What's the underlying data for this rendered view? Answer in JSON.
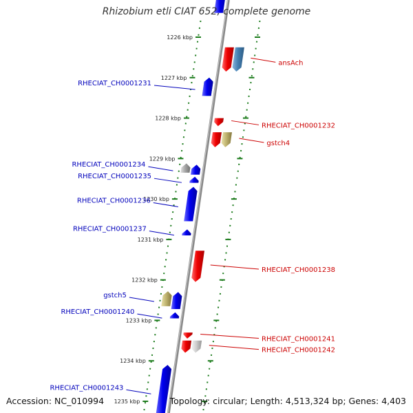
{
  "header": {
    "title": "Rhizobium etli CIAT 652, complete genome"
  },
  "footer": {
    "accession": "Accession: NC_010994",
    "topology": "Topology: circular; Length: 4,513,324 bp; Genes: 4,403"
  },
  "colors": {
    "forward_gene": "#ff0000",
    "reverse_gene": "#0000ff",
    "forward_label": "#cc0000",
    "reverse_label": "#0000bb",
    "tick": "#1a7a1a",
    "backbone": "#888888"
  },
  "ticks": [
    {
      "kbp": 1226,
      "label": "1226 kbp"
    },
    {
      "kbp": 1227,
      "label": "1227 kbp"
    },
    {
      "kbp": 1228,
      "label": "1228 kbp"
    },
    {
      "kbp": 1229,
      "label": "1229 kbp"
    },
    {
      "kbp": 1230,
      "label": "1230 kbp"
    },
    {
      "kbp": 1231,
      "label": "1231 kbp"
    },
    {
      "kbp": 1232,
      "label": "1232 kbp"
    },
    {
      "kbp": 1233,
      "label": "1233 kbp"
    },
    {
      "kbp": 1234,
      "label": "1234 kbp"
    },
    {
      "kbp": 1235,
      "label": "1235 kbp"
    }
  ],
  "genes": [
    {
      "start": 1224.7,
      "end": 1225.4,
      "strand": "-",
      "color": "blue"
    },
    {
      "start": 1226.25,
      "end": 1226.85,
      "strand": "+",
      "color": "red"
    },
    {
      "start": 1226.25,
      "end": 1226.85,
      "strand": "+",
      "color": "steelblue",
      "label": "ansAch"
    },
    {
      "start": 1227.0,
      "end": 1227.45,
      "strand": "-",
      "color": "orange"
    },
    {
      "start": 1227.0,
      "end": 1227.45,
      "strand": "-",
      "color": "cyan",
      "label": "RHECIAT_CH0001231"
    },
    {
      "start": 1227.0,
      "end": 1227.45,
      "strand": "-",
      "color": "blue"
    },
    {
      "start": 1228.0,
      "end": 1228.2,
      "strand": "+",
      "color": "red",
      "label": "RHECIAT_CH0001232"
    },
    {
      "start": 1228.35,
      "end": 1228.72,
      "strand": "+",
      "color": "red"
    },
    {
      "start": 1228.35,
      "end": 1228.72,
      "strand": "+",
      "color": "khaki",
      "label": "gstch4"
    },
    {
      "start": 1229.12,
      "end": 1229.35,
      "strand": "-",
      "color": "grey",
      "label": "RHECIAT_CH0001234"
    },
    {
      "start": 1229.15,
      "end": 1229.4,
      "strand": "-",
      "color": "blue"
    },
    {
      "start": 1229.45,
      "end": 1229.6,
      "strand": "-",
      "color": "blue",
      "label": "RHECIAT_CH0001235"
    },
    {
      "start": 1229.7,
      "end": 1230.55,
      "strand": "-",
      "color": "blue",
      "label": "RHECIAT_CH0001236"
    },
    {
      "start": 1230.75,
      "end": 1230.9,
      "strand": "-",
      "color": "blue",
      "label": "RHECIAT_CH0001237"
    },
    {
      "start": 1231.28,
      "end": 1232.05,
      "strand": "+",
      "color": "red",
      "label": "RHECIAT_CH0001238"
    },
    {
      "start": 1232.28,
      "end": 1232.65,
      "strand": "-",
      "color": "khaki",
      "label": "gstch5"
    },
    {
      "start": 1232.3,
      "end": 1232.72,
      "strand": "-",
      "color": "blue"
    },
    {
      "start": 1232.8,
      "end": 1232.95,
      "strand": "-",
      "color": "blue",
      "label": "RHECIAT_CH0001240"
    },
    {
      "start": 1233.3,
      "end": 1233.45,
      "strand": "+",
      "color": "red",
      "label": "RHECIAT_CH0001241"
    },
    {
      "start": 1233.5,
      "end": 1233.8,
      "strand": "+",
      "color": "red"
    },
    {
      "start": 1233.5,
      "end": 1233.8,
      "strand": "+",
      "color": "lightgrey",
      "label": "RHECIAT_CH0001242"
    },
    {
      "start": 1234.1,
      "end": 1235.4,
      "strand": "-",
      "color": "blue",
      "label": "RHECIAT_CH0001243"
    }
  ]
}
